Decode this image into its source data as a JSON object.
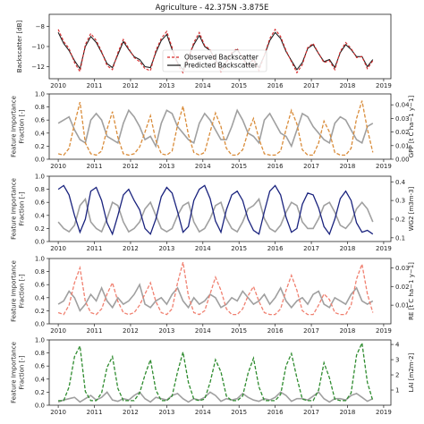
{
  "chart_data": [
    {
      "type": "line",
      "title": "Agriculture - 42.375N -3.875E",
      "ylabel": "Backscatter [dB]",
      "xlim": [
        2009.75,
        2019.2
      ],
      "ylim": [
        -13.2,
        -6.8
      ],
      "yticks": [
        -8,
        -10,
        -12
      ],
      "xticks": [
        "2010",
        "2011",
        "2012",
        "2013",
        "2014",
        "2015",
        "2016",
        "2017",
        "2018",
        "2019"
      ],
      "legend_position": "bottom-center",
      "series": [
        {
          "name": "Observed Backscatter",
          "color": "#d62728",
          "style": "dashed"
        },
        {
          "name": "Predicted Backscatter",
          "color": "#222222",
          "style": "solid"
        }
      ],
      "x": [
        2010.0,
        2010.15,
        2010.3,
        2010.45,
        2010.6,
        2010.75,
        2010.9,
        2011.05,
        2011.2,
        2011.35,
        2011.5,
        2011.65,
        2011.8,
        2011.95,
        2012.1,
        2012.25,
        2012.4,
        2012.55,
        2012.7,
        2012.85,
        2013.0,
        2013.15,
        2013.3,
        2013.45,
        2013.6,
        2013.75,
        2013.9,
        2014.05,
        2014.2,
        2014.35,
        2014.5,
        2014.65,
        2014.8,
        2014.95,
        2015.1,
        2015.25,
        2015.4,
        2015.55,
        2015.7,
        2015.85,
        2016.0,
        2016.15,
        2016.3,
        2016.45,
        2016.6,
        2016.75,
        2016.9,
        2017.05,
        2017.2,
        2017.35,
        2017.5,
        2017.65,
        2017.8,
        2017.95,
        2018.1,
        2018.25,
        2018.4,
        2018.55,
        2018.7
      ],
      "observed": [
        -8.3,
        -9.5,
        -10.2,
        -11.6,
        -12.5,
        -9.8,
        -8.7,
        -9.4,
        -10.5,
        -11.9,
        -12.3,
        -10.6,
        -9.3,
        -10.2,
        -11.1,
        -11.5,
        -12.2,
        -12.4,
        -10.4,
        -9.2,
        -8.5,
        -10.1,
        -11.8,
        -12.6,
        -11.2,
        -9.6,
        -8.6,
        -9.9,
        -10.3,
        -11.4,
        -12.5,
        -11.6,
        -10.6,
        -10.2,
        -11.2,
        -12.0,
        -11.3,
        -12.4,
        -10.9,
        -9.2,
        -8.3,
        -9.0,
        -10.4,
        -11.5,
        -12.6,
        -11.8,
        -10.1,
        -9.7,
        -10.7,
        -11.6,
        -11.4,
        -12.3,
        -10.5,
        -9.6,
        -10.2,
        -11.1,
        -11.0,
        -12.2,
        -11.4
      ],
      "predicted": [
        -8.6,
        -9.7,
        -10.4,
        -11.4,
        -12.2,
        -10.0,
        -9.0,
        -9.6,
        -10.6,
        -11.7,
        -12.1,
        -10.8,
        -9.5,
        -10.3,
        -11.0,
        -11.3,
        -12.0,
        -12.1,
        -10.6,
        -9.4,
        -8.8,
        -10.3,
        -11.6,
        -12.3,
        -11.0,
        -9.8,
        -8.9,
        -10.0,
        -10.4,
        -11.3,
        -12.2,
        -11.5,
        -10.7,
        -10.3,
        -11.1,
        -11.8,
        -11.2,
        -12.1,
        -10.9,
        -9.4,
        -8.6,
        -9.2,
        -10.5,
        -11.4,
        -12.3,
        -11.6,
        -10.2,
        -9.8,
        -10.7,
        -11.5,
        -11.3,
        -12.1,
        -10.6,
        -9.8,
        -10.3,
        -11.0,
        -11.0,
        -12.0,
        -11.3
      ]
    },
    {
      "type": "line",
      "ylabel": "Feature Importance\nFraction [-]",
      "ylabel_right": "GPP [t C ha−1 y−1]",
      "xlim": [
        2009.75,
        2019.2
      ],
      "ylim": [
        0.0,
        1.0
      ],
      "yticks": [
        "0.0",
        "0.2",
        "0.4",
        "0.6",
        "0.8",
        "1.0"
      ],
      "ylim_right": [
        0.0,
        0.048
      ],
      "yticks_right": [
        "0.00",
        "0.01",
        "0.02",
        "0.03",
        "0.04"
      ],
      "xticks": [
        "2010",
        "2011",
        "2012",
        "2013",
        "2014",
        "2015",
        "2016",
        "2017",
        "2018",
        "2019"
      ],
      "series": [
        {
          "name": "Feature Importance",
          "color": "#a0a0a0",
          "style": "solid",
          "axis": "left",
          "values": [
            0.55,
            0.6,
            0.65,
            0.45,
            0.3,
            0.25,
            0.6,
            0.7,
            0.6,
            0.35,
            0.3,
            0.25,
            0.55,
            0.75,
            0.65,
            0.5,
            0.3,
            0.35,
            0.2,
            0.55,
            0.75,
            0.7,
            0.5,
            0.4,
            0.3,
            0.25,
            0.55,
            0.7,
            0.6,
            0.45,
            0.3,
            0.3,
            0.5,
            0.75,
            0.6,
            0.4,
            0.35,
            0.25,
            0.6,
            0.7,
            0.55,
            0.4,
            0.35,
            0.2,
            0.45,
            0.7,
            0.65,
            0.5,
            0.4,
            0.3,
            0.25,
            0.55,
            0.65,
            0.6,
            0.45,
            0.3,
            0.25,
            0.5,
            0.55
          ]
        },
        {
          "name": "GPP",
          "color": "#d98c3a",
          "style": "dashed",
          "axis": "right",
          "values": [
            0.004,
            0.003,
            0.008,
            0.026,
            0.042,
            0.012,
            0.004,
            0.003,
            0.006,
            0.022,
            0.035,
            0.016,
            0.004,
            0.003,
            0.004,
            0.009,
            0.02,
            0.032,
            0.014,
            0.004,
            0.003,
            0.006,
            0.025,
            0.039,
            0.018,
            0.005,
            0.003,
            0.005,
            0.02,
            0.034,
            0.024,
            0.008,
            0.003,
            0.003,
            0.007,
            0.02,
            0.03,
            0.015,
            0.004,
            0.003,
            0.003,
            0.006,
            0.022,
            0.036,
            0.026,
            0.007,
            0.003,
            0.003,
            0.012,
            0.028,
            0.02,
            0.005,
            0.003,
            0.003,
            0.008,
            0.03,
            0.043,
            0.022,
            0.005
          ]
        }
      ]
    },
    {
      "type": "line",
      "ylabel": "Feature Importance\nFraction [-]",
      "ylabel_right": "WG2 [m3m-3]",
      "xlim": [
        2009.75,
        2019.2
      ],
      "ylim": [
        0.0,
        1.0
      ],
      "yticks": [
        "0.0",
        "0.2",
        "0.4",
        "0.6",
        "0.8",
        "1.0"
      ],
      "ylim_right": [
        0.08,
        0.43
      ],
      "yticks_right": [
        "0.1",
        "0.2",
        "0.3",
        "0.4"
      ],
      "xticks": [
        "2010",
        "2011",
        "2012",
        "2013",
        "2014",
        "2015",
        "2016",
        "2017",
        "2018",
        "2019"
      ],
      "series": [
        {
          "name": "Feature Importance",
          "color": "#a0a0a0",
          "style": "solid",
          "axis": "left",
          "values": [
            0.3,
            0.2,
            0.15,
            0.25,
            0.55,
            0.65,
            0.3,
            0.2,
            0.15,
            0.35,
            0.6,
            0.55,
            0.3,
            0.15,
            0.2,
            0.3,
            0.5,
            0.6,
            0.4,
            0.2,
            0.15,
            0.2,
            0.4,
            0.55,
            0.6,
            0.3,
            0.15,
            0.2,
            0.35,
            0.55,
            0.6,
            0.35,
            0.2,
            0.15,
            0.3,
            0.5,
            0.55,
            0.65,
            0.35,
            0.2,
            0.15,
            0.25,
            0.45,
            0.6,
            0.55,
            0.3,
            0.2,
            0.2,
            0.35,
            0.55,
            0.6,
            0.45,
            0.25,
            0.2,
            0.3,
            0.5,
            0.6,
            0.5,
            0.3
          ]
        },
        {
          "name": "WG2",
          "color": "#1a237e",
          "style": "solid",
          "axis": "right",
          "values": [
            0.36,
            0.38,
            0.33,
            0.22,
            0.13,
            0.2,
            0.35,
            0.37,
            0.3,
            0.18,
            0.12,
            0.22,
            0.33,
            0.36,
            0.3,
            0.25,
            0.15,
            0.12,
            0.2,
            0.32,
            0.37,
            0.34,
            0.24,
            0.13,
            0.16,
            0.3,
            0.36,
            0.38,
            0.31,
            0.19,
            0.13,
            0.25,
            0.33,
            0.35,
            0.3,
            0.2,
            0.14,
            0.12,
            0.24,
            0.35,
            0.38,
            0.33,
            0.21,
            0.13,
            0.15,
            0.28,
            0.34,
            0.33,
            0.26,
            0.16,
            0.12,
            0.2,
            0.31,
            0.35,
            0.3,
            0.18,
            0.13,
            0.14,
            0.12
          ]
        }
      ]
    },
    {
      "type": "line",
      "ylabel": "Feature Importance\nFraction [-]",
      "ylabel_right": "RE [t C ha−1 y−1]",
      "xlim": [
        2009.75,
        2019.2
      ],
      "ylim": [
        0.0,
        1.0
      ],
      "yticks": [
        "0.0",
        "0.2",
        "0.4",
        "0.6",
        "0.8",
        "1.0"
      ],
      "ylim_right": [
        0.0,
        0.035
      ],
      "yticks_right": [
        "0.01",
        "0.02",
        "0.03"
      ],
      "xticks": [
        "2010",
        "2011",
        "2012",
        "2013",
        "2014",
        "2015",
        "2016",
        "2017",
        "2018",
        "2019"
      ],
      "series": [
        {
          "name": "Feature Importance",
          "color": "#a0a0a0",
          "style": "solid",
          "axis": "left",
          "values": [
            0.3,
            0.35,
            0.5,
            0.4,
            0.2,
            0.3,
            0.45,
            0.35,
            0.55,
            0.35,
            0.25,
            0.4,
            0.3,
            0.35,
            0.45,
            0.6,
            0.3,
            0.25,
            0.35,
            0.4,
            0.3,
            0.45,
            0.55,
            0.35,
            0.25,
            0.4,
            0.3,
            0.35,
            0.45,
            0.4,
            0.25,
            0.3,
            0.4,
            0.35,
            0.5,
            0.4,
            0.3,
            0.35,
            0.45,
            0.3,
            0.4,
            0.55,
            0.35,
            0.25,
            0.35,
            0.4,
            0.3,
            0.45,
            0.5,
            0.3,
            0.25,
            0.4,
            0.35,
            0.3,
            0.45,
            0.55,
            0.35,
            0.3,
            0.35
          ]
        },
        {
          "name": "RE",
          "color": "#f08070",
          "style": "dashed",
          "axis": "right",
          "values": [
            0.006,
            0.005,
            0.01,
            0.022,
            0.03,
            0.012,
            0.006,
            0.005,
            0.008,
            0.016,
            0.022,
            0.012,
            0.006,
            0.005,
            0.006,
            0.01,
            0.016,
            0.022,
            0.012,
            0.006,
            0.005,
            0.008,
            0.022,
            0.033,
            0.015,
            0.006,
            0.005,
            0.007,
            0.016,
            0.025,
            0.018,
            0.008,
            0.005,
            0.005,
            0.008,
            0.015,
            0.02,
            0.012,
            0.006,
            0.005,
            0.005,
            0.008,
            0.018,
            0.026,
            0.018,
            0.007,
            0.005,
            0.005,
            0.01,
            0.016,
            0.013,
            0.006,
            0.005,
            0.005,
            0.01,
            0.024,
            0.032,
            0.016,
            0.006
          ]
        }
      ]
    },
    {
      "type": "line",
      "ylabel": "Feature Importance\nFraction [-]",
      "ylabel_right": "LAI [m2m-2]",
      "xlim": [
        2009.75,
        2019.2
      ],
      "ylim": [
        0.0,
        1.0
      ],
      "yticks": [
        "0.0",
        "0.2",
        "0.4",
        "0.6",
        "0.8",
        "1.0"
      ],
      "ylim_right": [
        0.0,
        4.3
      ],
      "yticks_right": [
        "1",
        "2",
        "3",
        "4"
      ],
      "xticks": [
        "2010",
        "2011",
        "2012",
        "2013",
        "2014",
        "2015",
        "2016",
        "2017",
        "2018",
        "2019"
      ],
      "series": [
        {
          "name": "Feature Importance",
          "color": "#a0a0a0",
          "style": "solid",
          "axis": "left",
          "values": [
            0.05,
            0.08,
            0.1,
            0.12,
            0.05,
            0.1,
            0.15,
            0.08,
            0.12,
            0.2,
            0.08,
            0.06,
            0.1,
            0.08,
            0.15,
            0.2,
            0.1,
            0.05,
            0.12,
            0.1,
            0.08,
            0.15,
            0.18,
            0.1,
            0.05,
            0.1,
            0.08,
            0.12,
            0.2,
            0.15,
            0.06,
            0.1,
            0.08,
            0.1,
            0.18,
            0.12,
            0.08,
            0.06,
            0.1,
            0.08,
            0.12,
            0.2,
            0.15,
            0.06,
            0.1,
            0.1,
            0.08,
            0.14,
            0.2,
            0.1,
            0.05,
            0.1,
            0.1,
            0.08,
            0.15,
            0.18,
            0.12,
            0.06,
            0.1
          ]
        },
        {
          "name": "LAI",
          "color": "#2e8b2e",
          "style": "dashed",
          "axis": "right",
          "values": [
            0.3,
            0.3,
            1.2,
            3.2,
            3.9,
            0.9,
            0.3,
            0.3,
            0.8,
            2.5,
            3.2,
            1.1,
            0.3,
            0.3,
            0.3,
            0.8,
            2.0,
            3.0,
            1.0,
            0.3,
            0.3,
            0.6,
            2.2,
            3.5,
            1.5,
            0.4,
            0.3,
            0.4,
            1.5,
            3.0,
            2.2,
            0.6,
            0.3,
            0.3,
            0.6,
            2.1,
            3.1,
            1.2,
            0.3,
            0.3,
            0.3,
            0.7,
            2.6,
            3.4,
            1.8,
            0.4,
            0.3,
            0.3,
            1.0,
            2.8,
            1.8,
            0.4,
            0.3,
            0.3,
            0.8,
            3.3,
            4.1,
            1.5,
            0.3
          ]
        }
      ]
    }
  ]
}
